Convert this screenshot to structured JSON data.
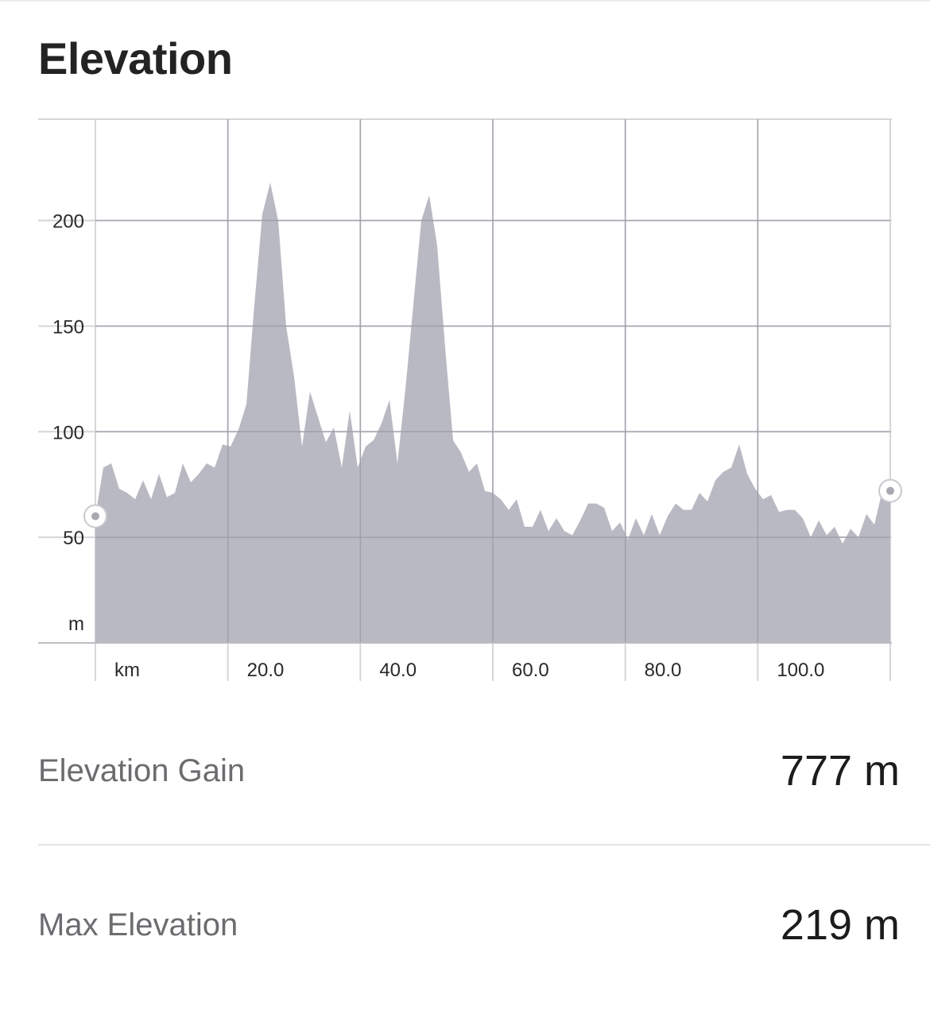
{
  "header": {
    "title": "Elevation"
  },
  "chart_data": {
    "type": "area",
    "title": "",
    "ylabel": "m",
    "xlabel": "km",
    "xlim": [
      0,
      120
    ],
    "ylim": [
      0,
      248
    ],
    "y_ticks": [
      50,
      100,
      150,
      200
    ],
    "y_tick_labels": [
      "50",
      "100",
      "150",
      "200"
    ],
    "x_ticks": [
      20,
      40,
      60,
      80,
      100
    ],
    "x_tick_labels": [
      "20.0",
      "40.0",
      "60.0",
      "80.0",
      "100.0"
    ],
    "grid": true,
    "fill_color": "#b9b9c3",
    "grid_color": "#d6d6da",
    "series": [
      {
        "x": [
          0,
          1.2,
          2.4,
          3.6,
          4.8,
          6,
          7.2,
          8.4,
          9.6,
          10.8,
          12,
          13.2,
          14.4,
          15.6,
          16.8,
          18,
          19.2,
          20.4,
          21.6,
          22.8,
          24,
          25.2,
          26.4,
          27.6,
          28.8,
          30,
          31.2,
          32.4,
          33.6,
          34.8,
          36,
          37.2,
          38.4,
          39.6,
          40.8,
          42,
          43.2,
          44.4,
          45.6,
          46.8,
          48,
          49.2,
          50.4,
          51.6,
          52.8,
          54,
          55.2,
          56.4,
          57.6,
          58.8,
          60,
          61.2,
          62.4,
          63.6,
          64.8,
          66,
          67.2,
          68.4,
          69.6,
          70.8,
          72,
          73.2,
          74.4,
          75.6,
          76.8,
          78,
          79.2,
          80.4,
          81.6,
          82.8,
          84,
          85.2,
          86.4,
          87.6,
          88.8,
          90,
          91.2,
          92.4,
          93.6,
          94.8,
          96,
          97.2,
          98.4,
          99.6,
          100.8,
          102,
          103.2,
          104.4,
          105.6,
          106.8,
          108,
          109.2,
          110.4,
          111.6,
          112.8,
          114,
          115.2,
          116.4,
          117.6,
          118.8,
          120
        ],
        "y": [
          60,
          83,
          85,
          73,
          71,
          68,
          77,
          68,
          80,
          69,
          71,
          85,
          76,
          80,
          85,
          83,
          94,
          93,
          101,
          113,
          160,
          203,
          218,
          200,
          150,
          126,
          93,
          119,
          107,
          95,
          102,
          83,
          110,
          83,
          93,
          96,
          104,
          115,
          85,
          120,
          160,
          200,
          212,
          188,
          140,
          96,
          90,
          81,
          85,
          72,
          71,
          68,
          63,
          68,
          55,
          55,
          63,
          53,
          59,
          53,
          51,
          58,
          66,
          66,
          64,
          53,
          57,
          49,
          59,
          51,
          61,
          51,
          60,
          66,
          63,
          63,
          71,
          67,
          77,
          81,
          83,
          94,
          80,
          73,
          68,
          70,
          62,
          63,
          63,
          59,
          50,
          58,
          51,
          55,
          47,
          54,
          50,
          61,
          56,
          72,
          72
        ]
      }
    ]
  },
  "stats": {
    "gain": {
      "label": "Elevation Gain",
      "value": "777 m"
    },
    "max": {
      "label": "Max Elevation",
      "value": "219 m"
    }
  }
}
